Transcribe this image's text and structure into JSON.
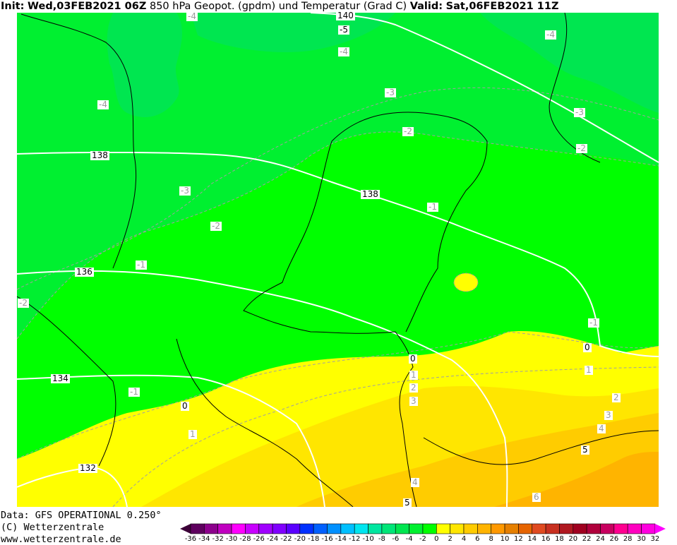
{
  "header": {
    "init_label": "Init:",
    "init_value": "Wed,03FEB2021 06Z",
    "title": "850 hPa Geopot. (gpdm) und Temperatur (Grad C)",
    "valid_label": "Valid:",
    "valid_value": "Sat,06FEB2021 11Z"
  },
  "footer": {
    "data": "Data: GFS OPERATIONAL 0.250°",
    "copyright": "(C) Wetterzentrale",
    "url": "www.wetterzentrale.de"
  },
  "geopotential_labels": [
    "140",
    "138",
    "138",
    "136",
    "134",
    "132"
  ],
  "temperature_labels": [
    "-4",
    "-5",
    "-4",
    "-4",
    "-4",
    "-3",
    "-3",
    "-2",
    "-2",
    "-3",
    "-2",
    "-1",
    "-1",
    "-2",
    "-1",
    "0",
    "-1",
    "0",
    "0",
    "1",
    "1",
    "1",
    "2",
    "2",
    "3",
    "3",
    "4",
    "4",
    "5",
    "5",
    "6"
  ],
  "colorbar": {
    "ticks": [
      "-36",
      "-34",
      "-32",
      "-30",
      "-28",
      "-26",
      "-24",
      "-22",
      "-20",
      "-18",
      "-16",
      "-14",
      "-12",
      "-10",
      "-8",
      "-6",
      "-4",
      "-2",
      "0",
      "2",
      "4",
      "6",
      "8",
      "10",
      "12",
      "14",
      "16",
      "18",
      "20",
      "22",
      "24",
      "26",
      "28",
      "30",
      "32"
    ],
    "colors": [
      "#5e005e",
      "#8c008c",
      "#c000c0",
      "#ff00ff",
      "#c800ff",
      "#a000ff",
      "#8000ff",
      "#5a00ff",
      "#0030ff",
      "#0060ff",
      "#0090ff",
      "#00c0ff",
      "#00e6f0",
      "#00e6a0",
      "#00e678",
      "#00e650",
      "#00f030",
      "#00ff00",
      "#ffff00",
      "#ffe600",
      "#ffcc00",
      "#ffb400",
      "#ff9900",
      "#e68000",
      "#e66400",
      "#e04a20",
      "#c83020",
      "#b01820",
      "#a00020",
      "#b0003c",
      "#c80060",
      "#ff0090",
      "#ff00c0",
      "#ff00e0"
    ],
    "low_arrow": "#3c0038",
    "high_arrow": "#ff00ff"
  }
}
